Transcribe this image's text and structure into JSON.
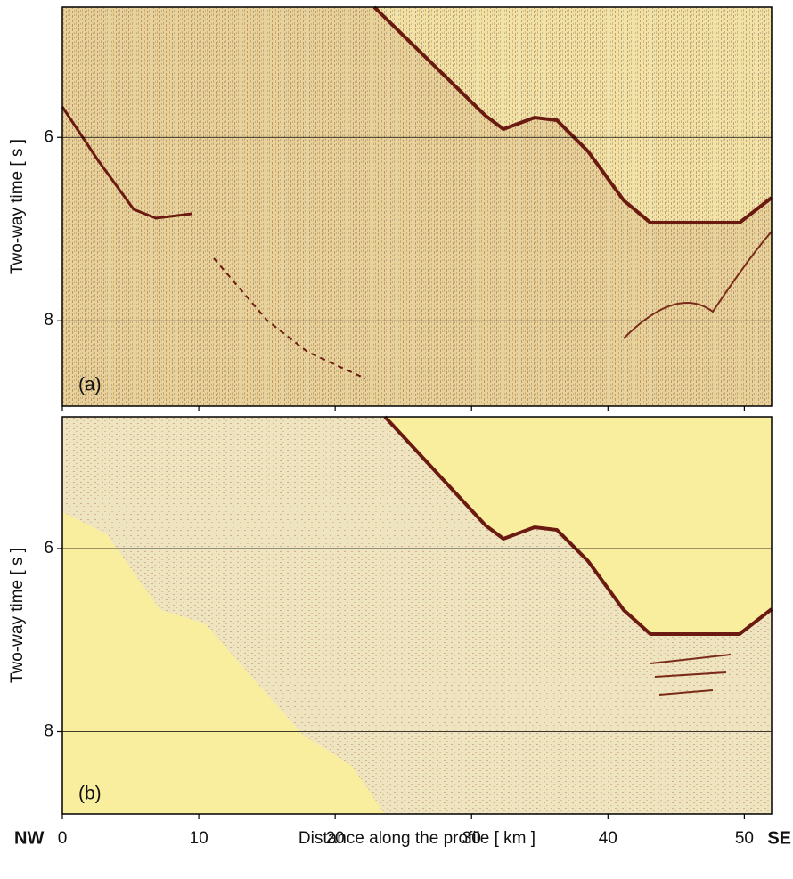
{
  "chart_data": [
    {
      "type": "seismic",
      "panel_label": "(a)",
      "ylabel": "Two-way time  [ s ]",
      "ylim": [
        8.93,
        4.58
      ],
      "yticks": [
        6,
        8
      ],
      "xlim": [
        0,
        52
      ],
      "xticks": [
        0,
        10,
        20,
        30,
        40,
        50
      ],
      "x_tick_labels": false,
      "grid": true
    },
    {
      "type": "seismic",
      "panel_label": "(b)",
      "ylabel": "Two-way time  [ s ]",
      "ylim": [
        8.9,
        4.56
      ],
      "yticks": [
        6,
        8
      ],
      "xlim": [
        0,
        52
      ],
      "xticks": [
        0,
        10,
        20,
        30,
        40,
        50
      ],
      "x_tick_labels": true,
      "grid": true,
      "xlabel": "Distance along the profile  [ km ]",
      "left_label": "NW",
      "right_label": "SE"
    }
  ]
}
